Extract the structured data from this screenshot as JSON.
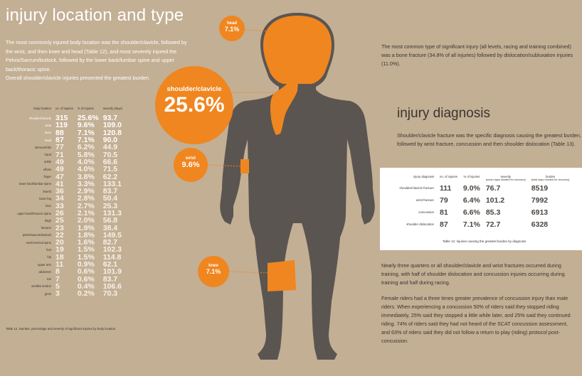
{
  "colors": {
    "background": "#c3af94",
    "figure": "#5b5551",
    "accent": "#f0861f",
    "text_dark": "#3a3530",
    "text_light": "#ffffff"
  },
  "title_location": "injury location and type",
  "intro_paragraphs": [
    "The most commonly injured body location was the shoulder/clavicle, followed by the wrist, and then knee and head (Table 12), and most severely injured the Pelvis/Sacrum/buttock, followed by the lower back/lumbar spine and upper back/thoracic spine.",
    "Overall shoulder/clavicle injuries presented the greatest burden."
  ],
  "badges": {
    "head": {
      "label": "head",
      "value": "7.1%"
    },
    "shoulder": {
      "label": "shoulder/clavicle",
      "value": "25.6%"
    },
    "wrist": {
      "label": "wrist",
      "value": "9.6%"
    },
    "knee": {
      "label": "knee",
      "value": "7.1%"
    }
  },
  "chart_data": [
    {
      "type": "table",
      "caption": "Table 12. Number, percentage and severity of significant injuries by body location.",
      "columns": [
        "body location",
        "no. of injuries",
        "% of injuries",
        "severity (days)"
      ],
      "rows": [
        [
          "shoulder/clavicle",
          "315",
          "25.6%",
          "93.7"
        ],
        [
          "wrist",
          "119",
          "9.6%",
          "109.0"
        ],
        [
          "knee",
          "88",
          "7.1%",
          "120.8"
        ],
        [
          "head",
          "87",
          "7.1%",
          "90.0"
        ],
        [
          "sternum/ribs",
          "77",
          "6.2%",
          "44.9"
        ],
        [
          "hand",
          "71",
          "5.8%",
          "70.5"
        ],
        [
          "ankle",
          "49",
          "4.0%",
          "66.6"
        ],
        [
          "elbow",
          "49",
          "4.0%",
          "71.5"
        ],
        [
          "finger",
          "47",
          "3.8%",
          "62.2"
        ],
        [
          "lower back/lumbar spine",
          "41",
          "3.3%",
          "133.1"
        ],
        [
          "thumb",
          "36",
          "2.9%",
          "83.7"
        ],
        [
          "lower leg",
          "34",
          "2.8%",
          "50.4"
        ],
        [
          "face",
          "33",
          "2.7%",
          "25.3"
        ],
        [
          "upper back/thoracic spine",
          "26",
          "2.1%",
          "131.3"
        ],
        [
          "thigh",
          "25",
          "2.0%",
          "56.8"
        ],
        [
          "forearm",
          "23",
          "1.9%",
          "38.4"
        ],
        [
          "pelvis/sacrum/buttock",
          "22",
          "1.8%",
          "149.5"
        ],
        [
          "neck/cervical spine",
          "20",
          "1.6%",
          "82.7"
        ],
        [
          "foot",
          "19",
          "1.5%",
          "102.3"
        ],
        [
          "hip",
          "18",
          "1.5%",
          "114.8"
        ],
        [
          "upper arm",
          "11",
          "0.9%",
          "62.1"
        ],
        [
          "abdomen",
          "8",
          "0.6%",
          "101.9"
        ],
        [
          "toe",
          "7",
          "0.6%",
          "83.7"
        ],
        [
          "achilles tendon",
          "5",
          "0.4%",
          "106.6"
        ],
        [
          "groin",
          "3",
          "0.2%",
          "70.3"
        ]
      ],
      "highlighted_rows": [
        0,
        1,
        2,
        3
      ]
    },
    {
      "type": "table",
      "caption": "Table 13. Injuries causing the greatest burden by diagnosis",
      "columns": [
        {
          "label": "injury diagnosis",
          "sub": ""
        },
        {
          "label": "no. of injuries",
          "sub": ""
        },
        {
          "label": "% of injuries",
          "sub": ""
        },
        {
          "label": "severity",
          "sub": "(mean days needed for recovery)"
        },
        {
          "label": "burden",
          "sub": "(total days needed for recovery)"
        }
      ],
      "rows": [
        [
          "shoulder/clavicle fracture",
          "111",
          "9.0%",
          "76.7",
          "8519"
        ],
        [
          "wrist fracture",
          "79",
          "6.4%",
          "101.2",
          "7992"
        ],
        [
          "concussion",
          "81",
          "6.6%",
          "85.3",
          "6913"
        ],
        [
          "shoulder dislocation",
          "87",
          "7.1%",
          "72.7",
          "6328"
        ]
      ]
    }
  ],
  "right_intro": "The most common type of significant injury (all levels, racing and training combined) was a bone fracture (34.8% of all injuries) followed by dislocation/subluxation injuries (11.0%).",
  "title_diagnosis": "injury diagnosis",
  "diagnosis_intro": "Shoulder/clavicle fracture was the specific diagnosis causing the greatest burden, followed by wrist fracture, concussion and then shoulder dislocation (Table 13).",
  "bottom_paragraphs": [
    "Nearly three quarters or all shoulder/clavicle and wrist fractures occurred during training, with half of shoulder dislocation and concussion injuries occurring during training and half during racing.",
    "Female riders had a three times greater prevalence of concussion injury than male riders. When experiencing a concussion 50% of riders said they stopped riding immediately, 25% said they stopped a little while later, and 25% said they continued riding.  74% of riders said they had not heard of the SCAT concussion assessment, and 63% of riders said they did not follow a return to play (riding) protocol post-concussion."
  ]
}
